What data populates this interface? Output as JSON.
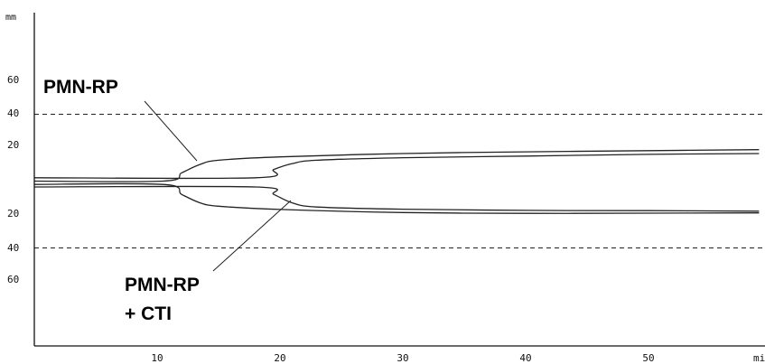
{
  "chart_data": {
    "type": "line",
    "x_unit": "min",
    "y_unit": "mm",
    "x_ticks": [
      10,
      20,
      30,
      40,
      50
    ],
    "y_tick_labels_upper": [
      "60",
      "40",
      "20"
    ],
    "y_tick_labels_lower": [
      "20",
      "40",
      "60"
    ],
    "xlim": [
      0,
      59
    ],
    "reference_lines_mm": [
      40,
      -40
    ],
    "grid": false,
    "legend": "none",
    "annotations": [
      {
        "label": "PMN-RP",
        "lines": [
          "PMN-RP"
        ],
        "series": "PMN-RP"
      },
      {
        "label": "PMN-RP + CTI",
        "lines": [
          "PMN-RP",
          "+ CTI"
        ],
        "series": "PMN-RP + CTI"
      }
    ],
    "series": [
      {
        "name": "PMN-RP",
        "upper": [
          [
            0,
            0
          ],
          [
            10.5,
            0
          ],
          [
            12,
            5
          ],
          [
            13.5,
            10
          ],
          [
            15,
            12.5
          ],
          [
            20,
            14.5
          ],
          [
            30,
            16.5
          ],
          [
            40,
            17.5
          ],
          [
            50,
            18.2
          ],
          [
            59,
            18.8
          ]
        ],
        "lower": [
          [
            0,
            -2
          ],
          [
            10.5,
            -2
          ],
          [
            12,
            -8
          ],
          [
            13.5,
            -13
          ],
          [
            15,
            -15
          ],
          [
            20,
            -17
          ],
          [
            30,
            -18.8
          ],
          [
            40,
            -19.3
          ],
          [
            50,
            -19.2
          ],
          [
            59,
            -19
          ]
        ]
      },
      {
        "name": "PMN-RP + CTI",
        "upper": [
          [
            0,
            2
          ],
          [
            18,
            2
          ],
          [
            19.5,
            7
          ],
          [
            21,
            10.5
          ],
          [
            23,
            12.5
          ],
          [
            30,
            14
          ],
          [
            40,
            15
          ],
          [
            50,
            16
          ],
          [
            59,
            16.5
          ]
        ],
        "lower": [
          [
            0,
            -3.5
          ],
          [
            18,
            -3.5
          ],
          [
            19.5,
            -8
          ],
          [
            21,
            -13
          ],
          [
            23,
            -15.5
          ],
          [
            30,
            -16.8
          ],
          [
            40,
            -17.5
          ],
          [
            50,
            -17.7
          ],
          [
            59,
            -18
          ]
        ]
      }
    ]
  }
}
